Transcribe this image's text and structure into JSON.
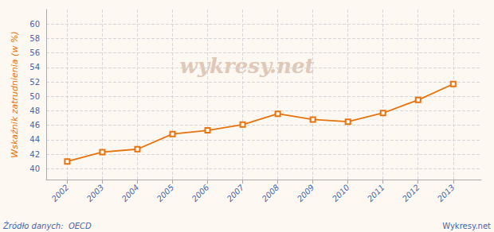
{
  "chart_data": {
    "type": "line",
    "x": [
      2002,
      2003,
      2004,
      2005,
      2006,
      2007,
      2008,
      2009,
      2010,
      2011,
      2012,
      2013
    ],
    "values": [
      41.0,
      42.3,
      42.7,
      44.8,
      45.3,
      46.1,
      47.6,
      46.8,
      46.5,
      47.7,
      49.5,
      51.7
    ],
    "color": "#E8720C",
    "marker": "square",
    "ylabel": "Wskaźnik zatrudnienia (w %)",
    "xlim": [
      2001.4,
      2013.8
    ],
    "xticks": [
      2002,
      2003,
      2004,
      2005,
      2006,
      2007,
      2008,
      2009,
      2010,
      2011,
      2012,
      2013
    ],
    "ylim": [
      38.5,
      62
    ],
    "yticks": [
      40,
      42,
      44,
      46,
      48,
      50,
      52,
      54,
      56,
      58,
      60
    ],
    "grid": true,
    "annotations": [
      "wykresy.net",
      "Źródło danych:  OECD",
      "Wykresy.net"
    ]
  }
}
